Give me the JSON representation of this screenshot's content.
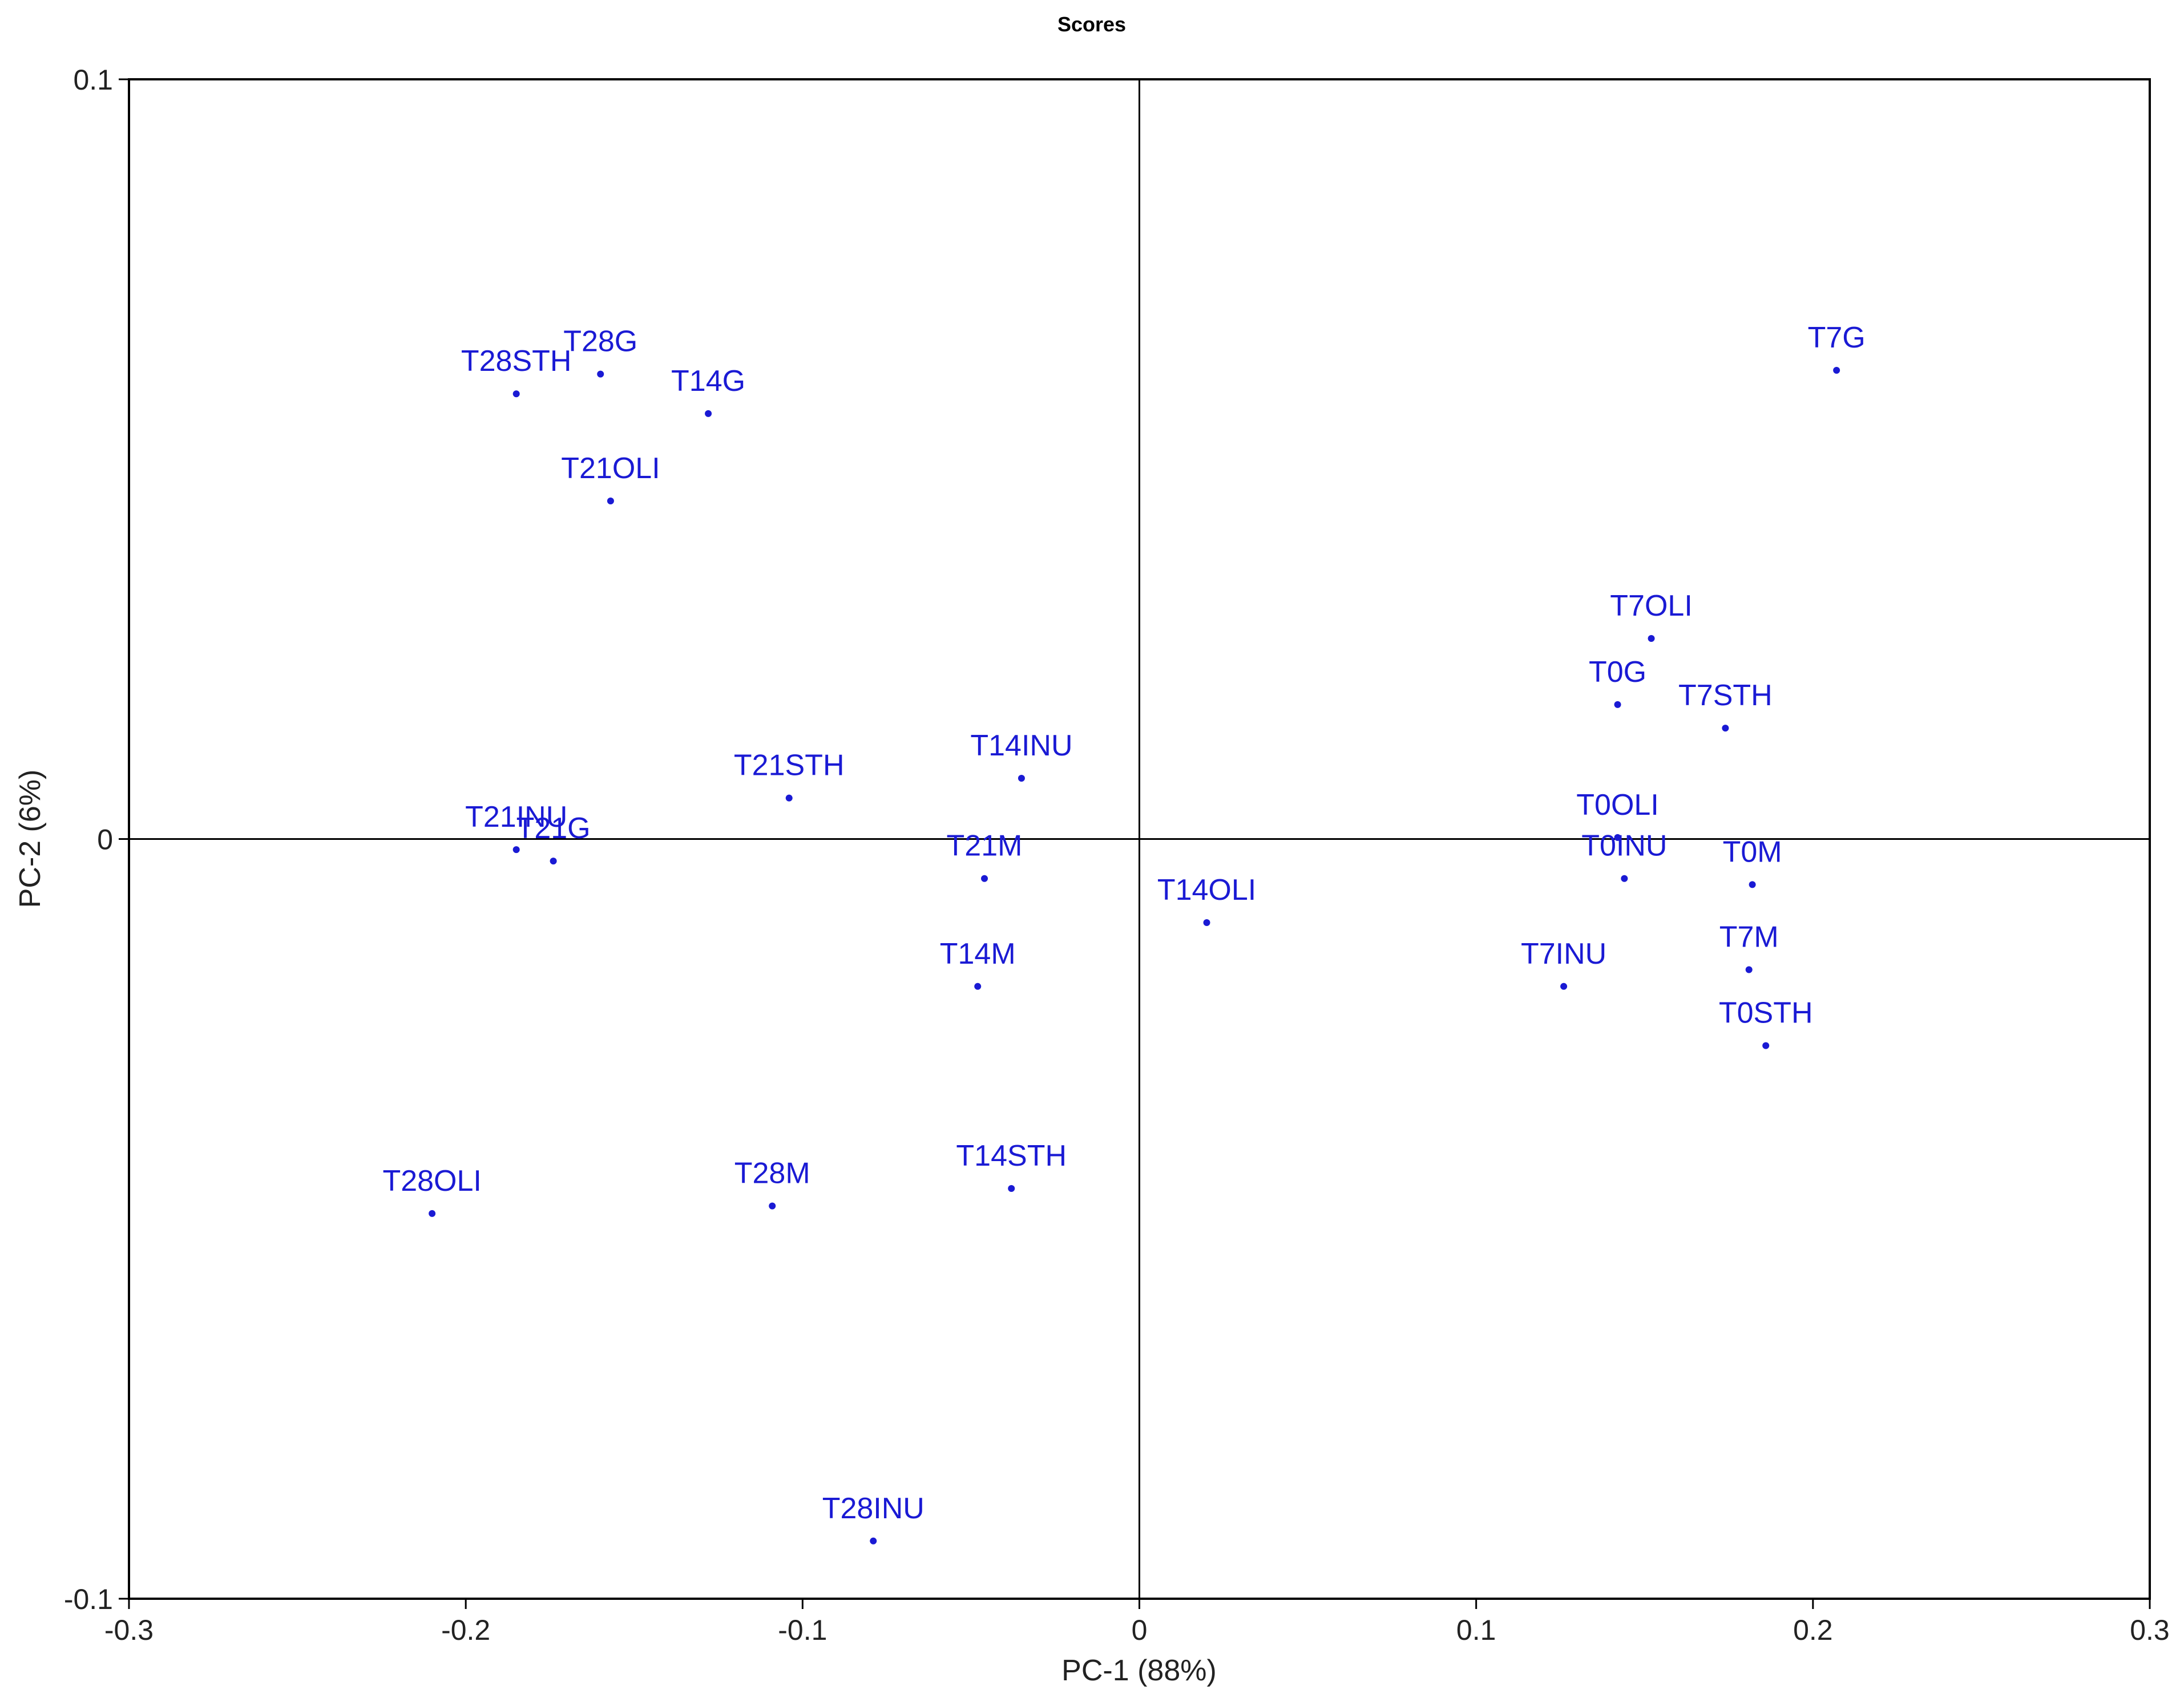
{
  "chart_data": {
    "type": "scatter",
    "title": "Scores",
    "xlabel": "PC-1 (88%)",
    "ylabel": "PC-2 (6%)",
    "xlim": [
      -0.3,
      0.3
    ],
    "ylim": [
      -0.1,
      0.1
    ],
    "x_ticks": [
      {
        "value": -0.3,
        "label": "-0.3"
      },
      {
        "value": -0.2,
        "label": "-0.2"
      },
      {
        "value": -0.1,
        "label": "-0.1"
      },
      {
        "value": 0,
        "label": "0"
      },
      {
        "value": 0.1,
        "label": "0.1"
      },
      {
        "value": 0.2,
        "label": "0.2"
      },
      {
        "value": 0.3,
        "label": "0.3"
      }
    ],
    "y_ticks": [
      {
        "value": 0.1,
        "label": "0.1"
      },
      {
        "value": 0,
        "label": "0"
      },
      {
        "value": -0.1,
        "label": "-0.1"
      }
    ],
    "grid": false,
    "zero_lines": true,
    "point_color": "#1a1ad4",
    "points": [
      {
        "label": "T7G",
        "x": 0.207,
        "y": 0.0617
      },
      {
        "label": "T28STH",
        "x": -0.185,
        "y": 0.0586
      },
      {
        "label": "T28G",
        "x": -0.16,
        "y": 0.0612
      },
      {
        "label": "T14G",
        "x": -0.128,
        "y": 0.056
      },
      {
        "label": "T21OLI",
        "x": -0.157,
        "y": 0.0445
      },
      {
        "label": "T7OLI",
        "x": 0.152,
        "y": 0.0264
      },
      {
        "label": "T0G",
        "x": 0.142,
        "y": 0.0177
      },
      {
        "label": "T7STH",
        "x": 0.174,
        "y": 0.0146
      },
      {
        "label": "T14INU",
        "x": -0.035,
        "y": 0.008
      },
      {
        "label": "T21STH",
        "x": -0.104,
        "y": 0.0054
      },
      {
        "label": "T21INU",
        "x": -0.185,
        "y": -0.0014
      },
      {
        "label": "T21G",
        "x": -0.174,
        "y": -0.0029
      },
      {
        "label": "T0OLI",
        "x": 0.142,
        "y": 0.0002
      },
      {
        "label": "T0INU",
        "x": 0.144,
        "y": -0.0052
      },
      {
        "label": "T0M",
        "x": 0.182,
        "y": -0.006
      },
      {
        "label": "T21M",
        "x": -0.046,
        "y": -0.0052
      },
      {
        "label": "T14OLI",
        "x": 0.02,
        "y": -0.011
      },
      {
        "label": "T7INU",
        "x": 0.126,
        "y": -0.0194
      },
      {
        "label": "T7M",
        "x": 0.181,
        "y": -0.0172
      },
      {
        "label": "T14M",
        "x": -0.048,
        "y": -0.0194
      },
      {
        "label": "T0STH",
        "x": 0.186,
        "y": -0.0272
      },
      {
        "label": "T28OLI",
        "x": -0.21,
        "y": -0.0493
      },
      {
        "label": "T28M",
        "x": -0.109,
        "y": -0.0483
      },
      {
        "label": "T14STH",
        "x": -0.038,
        "y": -0.046
      },
      {
        "label": "T28INU",
        "x": -0.079,
        "y": -0.0924
      }
    ]
  }
}
